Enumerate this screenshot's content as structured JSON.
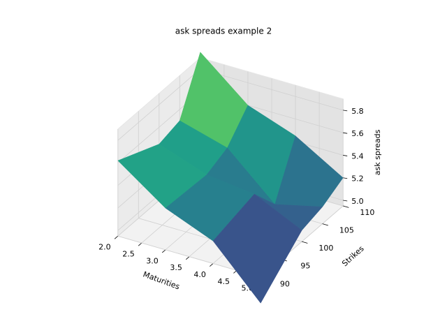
{
  "chart_data": {
    "type": "surface",
    "title": "ask spreads example 2",
    "x_label": "Maturities",
    "y_label": "Strikes",
    "z_label": "ask spreads",
    "x": [
      2,
      3,
      4,
      5
    ],
    "y": [
      90,
      100,
      105,
      110
    ],
    "z": [
      [
        5.62,
        5.32,
        5.15,
        4.72
      ],
      [
        5.45,
        5.3,
        5.25,
        5.05
      ],
      [
        5.5,
        5.38,
        5.0,
        5.1
      ],
      [
        5.95,
        5.6,
        5.45,
        5.2
      ]
    ],
    "xlim": [
      2,
      5
    ],
    "ylim": [
      90,
      110
    ],
    "zlim": [
      4.95,
      5.9
    ],
    "xticks": [
      {
        "value": 2,
        "label": "2.0"
      },
      {
        "value": 2.5,
        "label": "2.5"
      },
      {
        "value": 3,
        "label": "3.0"
      },
      {
        "value": 3.5,
        "label": "3.5"
      },
      {
        "value": 4,
        "label": "4.0"
      },
      {
        "value": 4.5,
        "label": "4.5"
      },
      {
        "value": 5,
        "label": "5.0"
      }
    ],
    "yticks": [
      90,
      95,
      100,
      105,
      110
    ],
    "zticks": [
      {
        "value": 5,
        "label": "5.0"
      },
      5.2,
      5.4,
      5.6,
      5.8
    ],
    "colormap": "viridis",
    "grid": true
  }
}
